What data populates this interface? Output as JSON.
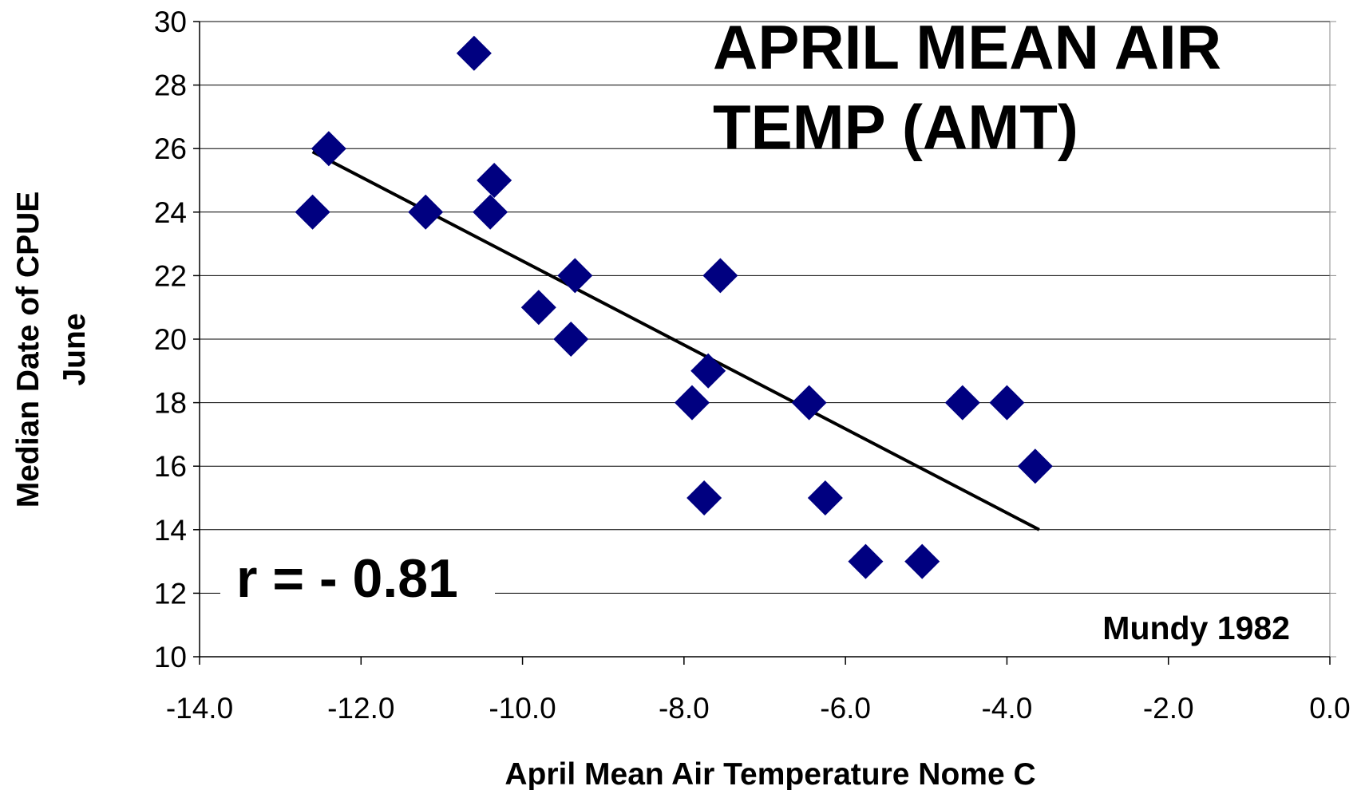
{
  "chart_data": {
    "type": "scatter",
    "title_lines": [
      "APRIL MEAN AIR",
      "TEMP (AMT)"
    ],
    "x_label": "April Mean Air Temperature Nome C",
    "y_label_lines": [
      "Median Date of CPUE",
      "June"
    ],
    "annotations": [
      "r = - 0.81",
      "Mundy 1982"
    ],
    "x": [
      -12.6,
      -12.4,
      -10.6,
      -11.2,
      -10.35,
      -10.4,
      -9.35,
      -9.8,
      -9.4,
      -7.55,
      -7.7,
      -7.9,
      -7.75,
      -6.45,
      -6.25,
      -5.75,
      -5.05,
      -4.55,
      -4.0,
      -3.65
    ],
    "values": [
      24,
      26,
      29,
      24,
      25,
      24,
      22,
      21,
      20,
      22,
      19,
      18,
      15,
      18,
      15,
      13,
      13,
      18,
      18,
      16
    ],
    "color": "#000080",
    "trendline": {
      "x": [
        -12.6,
        -3.6
      ],
      "y": [
        25.9,
        14.0
      ],
      "color": "#000000"
    },
    "xlim": [
      -14,
      0
    ],
    "xticks": [
      {
        "value": -14,
        "label": "-14.0"
      },
      {
        "value": -12,
        "label": "-12.0"
      },
      {
        "value": -10,
        "label": "-10.0"
      },
      {
        "value": -8,
        "label": "-8.0"
      },
      {
        "value": -6,
        "label": "-6.0"
      },
      {
        "value": -4,
        "label": "-4.0"
      },
      {
        "value": -2,
        "label": "-2.0"
      },
      {
        "value": 0,
        "label": "0.0"
      }
    ],
    "ylim": [
      10,
      30
    ],
    "yticks": [
      10,
      12,
      14,
      16,
      18,
      20,
      22,
      24,
      26,
      28,
      30
    ],
    "grid": true
  }
}
